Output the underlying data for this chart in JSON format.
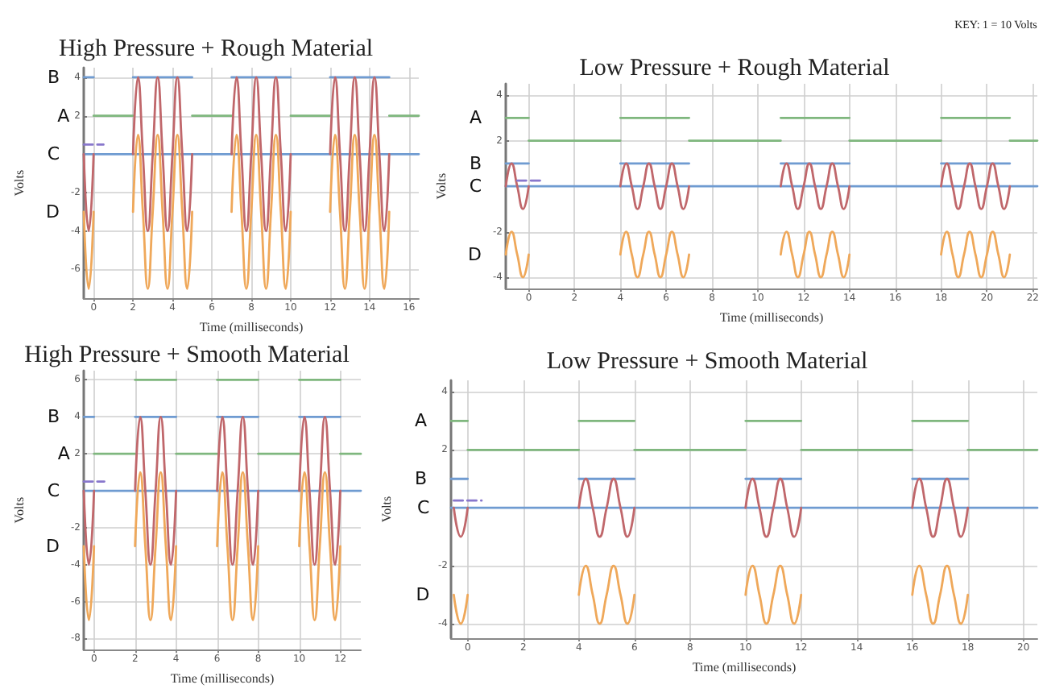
{
  "chart_data": [
    {
      "type": "line",
      "title": "High Pressure + Rough Material",
      "xlabel": "Time (milliseconds)",
      "ylabel": "Volts",
      "xlim": [
        -0.5,
        16.5
      ],
      "xticks": [
        0,
        2,
        4,
        6,
        8,
        10,
        12,
        14,
        16
      ],
      "ylim": [
        -7.5,
        4.5
      ],
      "yticks": [
        -6,
        -4,
        -2,
        2,
        4
      ],
      "grid": true,
      "marker": "none",
      "series": [
        {
          "name": "A",
          "color": "#7fb77e",
          "x": [
            0,
            2,
            null,
            5,
            7,
            null,
            10,
            12,
            null,
            15,
            16.5
          ],
          "values": [
            2,
            2,
            null,
            2,
            2,
            null,
            2,
            2,
            null,
            2,
            2
          ]
        },
        {
          "name": "B",
          "color": "#6f9bd1",
          "x": [
            -0.5,
            0,
            null,
            2,
            5,
            null,
            7,
            10,
            null,
            12,
            15,
            null,
            -0.5,
            16.5
          ],
          "values": [
            4,
            4,
            null,
            4,
            4,
            null,
            4,
            4,
            null,
            4,
            4,
            null,
            0,
            0
          ]
        },
        {
          "name": "C",
          "color": "#c0676b",
          "x": [
            -0.5,
            -0.25,
            0,
            null,
            2,
            2.25,
            2.5,
            2.75,
            3,
            3.25,
            3.5,
            3.75,
            4,
            4.25,
            4.5,
            4.75,
            5,
            null,
            7,
            7.25,
            7.5,
            7.75,
            8,
            8.25,
            8.5,
            8.75,
            9,
            9.25,
            9.5,
            9.75,
            10,
            null,
            12,
            12.25,
            12.5,
            12.75,
            13,
            13.25,
            13.5,
            13.75,
            14,
            14.25,
            14.5,
            14.75,
            15
          ],
          "values": [
            0,
            -4,
            0,
            null,
            0,
            4,
            0,
            -4,
            0,
            4,
            0,
            -4,
            0,
            4,
            0,
            -4,
            0,
            null,
            0,
            4,
            0,
            -4,
            0,
            4,
            0,
            -4,
            0,
            4,
            0,
            -4,
            0,
            null,
            0,
            4,
            0,
            -4,
            0,
            4,
            0,
            -4,
            0,
            4,
            0,
            -4,
            0
          ]
        },
        {
          "name": "D",
          "color": "#efa85a",
          "x": [
            -0.5,
            -0.25,
            0,
            null,
            2,
            2.25,
            2.5,
            2.75,
            3,
            3.25,
            3.5,
            3.75,
            4,
            4.25,
            4.5,
            4.75,
            5,
            null,
            7,
            7.25,
            7.5,
            7.75,
            8,
            8.25,
            8.5,
            8.75,
            9,
            9.25,
            9.5,
            9.75,
            10,
            null,
            12,
            12.25,
            12.5,
            12.75,
            13,
            13.25,
            13.5,
            13.75,
            14,
            14.25,
            14.5,
            14.75,
            15
          ],
          "values": [
            -3,
            -7,
            -3,
            null,
            -3,
            1,
            -3,
            -7,
            -3,
            1,
            -3,
            -7,
            -3,
            1,
            -3,
            -7,
            -3,
            null,
            -3,
            1,
            -3,
            -7,
            -3,
            1,
            -3,
            -7,
            -3,
            1,
            -3,
            -7,
            -3,
            null,
            -3,
            1,
            -3,
            -7,
            -3,
            1,
            -3,
            -7,
            -3,
            1,
            -3,
            -7,
            -3
          ]
        },
        {
          "color": "#8877cc",
          "line_style": "dashed",
          "x": [
            -0.5,
            0.5
          ],
          "values": [
            0.5,
            0.5
          ]
        }
      ]
    },
    {
      "type": "line",
      "title": "Low Pressure + Rough Material",
      "xlabel": "Time (milliseconds)",
      "ylabel": "Volts",
      "annotations": [
        "KEY: 1 = 10 Volts"
      ],
      "xlim": [
        -1,
        22.2
      ],
      "xticks": [
        0,
        2,
        4,
        6,
        8,
        10,
        12,
        14,
        16,
        18,
        20,
        22
      ],
      "ylim": [
        -4.5,
        4.5
      ],
      "yticks": [
        -4,
        -2,
        2,
        4
      ],
      "grid": true,
      "marker": "none",
      "series": [
        {
          "name": "A",
          "color": "#7fb77e",
          "x": [
            -1,
            0,
            null,
            0,
            4,
            null,
            4,
            7,
            null,
            7,
            11,
            null,
            11,
            14,
            null,
            14,
            18,
            null,
            18,
            21,
            null,
            21,
            22.2
          ],
          "values": [
            3,
            3,
            null,
            2,
            2,
            null,
            3,
            3,
            null,
            2,
            2,
            null,
            3,
            3,
            null,
            2,
            2,
            null,
            3,
            3,
            null,
            2,
            2
          ]
        },
        {
          "name": "B",
          "color": "#6f9bd1",
          "x": [
            -1,
            0,
            null,
            4,
            7,
            null,
            11,
            14,
            null,
            18,
            21,
            null,
            -1,
            22.2
          ],
          "values": [
            1,
            1,
            null,
            1,
            1,
            null,
            1,
            1,
            null,
            1,
            1,
            null,
            0,
            0
          ]
        },
        {
          "name": "C",
          "color": "#c0676b",
          "x": [
            -1,
            -0.75,
            -0.5,
            -0.25,
            0,
            null,
            4,
            4.25,
            4.5,
            4.75,
            5,
            5.25,
            5.5,
            5.75,
            6,
            6.25,
            6.5,
            6.75,
            7,
            null,
            11,
            11.25,
            11.5,
            11.75,
            12,
            12.25,
            12.5,
            12.75,
            13,
            13.25,
            13.5,
            13.75,
            14,
            null,
            18,
            18.25,
            18.5,
            18.75,
            19,
            19.25,
            19.5,
            19.75,
            20,
            20.25,
            20.5,
            20.75,
            21
          ],
          "values": [
            0,
            1,
            0,
            -1,
            0,
            null,
            0,
            1,
            0,
            -1,
            0,
            1,
            0,
            -1,
            0,
            1,
            0,
            -1,
            0,
            null,
            0,
            1,
            0,
            -1,
            0,
            1,
            0,
            -1,
            0,
            1,
            0,
            -1,
            0,
            null,
            0,
            1,
            0,
            -1,
            0,
            1,
            0,
            -1,
            0,
            1,
            0,
            -1,
            0
          ]
        },
        {
          "name": "D",
          "color": "#efa85a",
          "x": [
            -1,
            -0.75,
            -0.5,
            -0.25,
            0,
            null,
            4,
            4.25,
            4.5,
            4.75,
            5,
            5.25,
            5.5,
            5.75,
            6,
            6.25,
            6.5,
            6.75,
            7,
            null,
            11,
            11.25,
            11.5,
            11.75,
            12,
            12.25,
            12.5,
            12.75,
            13,
            13.25,
            13.5,
            13.75,
            14,
            null,
            18,
            18.25,
            18.5,
            18.75,
            19,
            19.25,
            19.5,
            19.75,
            20,
            20.25,
            20.5,
            20.75,
            21
          ],
          "values": [
            -3,
            -2,
            -3,
            -4,
            -3,
            null,
            -3,
            -2,
            -3,
            -4,
            -3,
            -2,
            -3,
            -4,
            -3,
            -2,
            -3,
            -4,
            -3,
            null,
            -3,
            -2,
            -3,
            -4,
            -3,
            -2,
            -3,
            -4,
            -3,
            -2,
            -3,
            -4,
            -3,
            null,
            -3,
            -2,
            -3,
            -4,
            -3,
            -2,
            -3,
            -4,
            -3,
            -2,
            -3,
            -4,
            -3
          ]
        },
        {
          "color": "#8877cc",
          "line_style": "dashed",
          "x": [
            -0.5,
            0.5
          ],
          "values": [
            0.25,
            0.25
          ]
        }
      ]
    },
    {
      "type": "line",
      "title": "High Pressure + Smooth Material",
      "xlabel": "Time (milliseconds)",
      "ylabel": "Volts",
      "xlim": [
        -0.5,
        13
      ],
      "xticks": [
        0,
        2,
        4,
        6,
        8,
        10,
        12
      ],
      "ylim": [
        -8.6,
        6.5
      ],
      "yticks": [
        -8,
        -6,
        -4,
        -2,
        2,
        4,
        6
      ],
      "grid": true,
      "marker": "none",
      "series": [
        {
          "name": "A",
          "color": "#7fb77e",
          "x": [
            0,
            2,
            null,
            2,
            4,
            null,
            4,
            6,
            null,
            6,
            8,
            null,
            8,
            10,
            null,
            10,
            12,
            null,
            12,
            13
          ],
          "values": [
            2,
            2,
            null,
            6,
            6,
            null,
            2,
            2,
            null,
            6,
            6,
            null,
            2,
            2,
            null,
            6,
            6,
            null,
            2,
            2
          ]
        },
        {
          "name": "B",
          "color": "#6f9bd1",
          "x": [
            -0.5,
            0,
            null,
            2,
            4,
            null,
            6,
            8,
            null,
            10,
            12,
            null,
            -0.5,
            13
          ],
          "values": [
            4,
            4,
            null,
            4,
            4,
            null,
            4,
            4,
            null,
            4,
            4,
            null,
            0,
            0
          ]
        },
        {
          "name": "C",
          "color": "#c0676b",
          "x": [
            -0.5,
            -0.25,
            0,
            null,
            2,
            2.25,
            2.5,
            2.75,
            3,
            3.25,
            3.5,
            3.75,
            4,
            null,
            6,
            6.25,
            6.5,
            6.75,
            7,
            7.25,
            7.5,
            7.75,
            8,
            null,
            10,
            10.25,
            10.5,
            10.75,
            11,
            11.25,
            11.5,
            11.75,
            12
          ],
          "values": [
            0,
            -4,
            0,
            null,
            0,
            4,
            0,
            -4,
            0,
            4,
            0,
            -4,
            0,
            null,
            0,
            4,
            0,
            -4,
            0,
            4,
            0,
            -4,
            0,
            null,
            0,
            4,
            0,
            -4,
            0,
            4,
            0,
            -4,
            0
          ]
        },
        {
          "name": "D",
          "color": "#efa85a",
          "x": [
            -0.5,
            -0.25,
            0,
            null,
            2,
            2.25,
            2.5,
            2.75,
            3,
            3.25,
            3.5,
            3.75,
            4,
            null,
            6,
            6.25,
            6.5,
            6.75,
            7,
            7.25,
            7.5,
            7.75,
            8,
            null,
            10,
            10.25,
            10.5,
            10.75,
            11,
            11.25,
            11.5,
            11.75,
            12
          ],
          "values": [
            -3,
            -7,
            -3,
            null,
            -3,
            1,
            -3,
            -7,
            -3,
            1,
            -3,
            -7,
            -3,
            null,
            -3,
            1,
            -3,
            -7,
            -3,
            1,
            -3,
            -7,
            -3,
            null,
            -3,
            1,
            -3,
            -7,
            -3,
            1,
            -3,
            -7,
            -3
          ]
        },
        {
          "color": "#8877cc",
          "line_style": "dashed",
          "x": [
            -0.5,
            0.5
          ],
          "values": [
            0.5,
            0.5
          ]
        }
      ]
    },
    {
      "type": "line",
      "title": "Low Pressure + Smooth Material",
      "xlabel": "Time (milliseconds)",
      "ylabel": "Volts",
      "xlim": [
        -0.6,
        20.5
      ],
      "xticks": [
        0,
        2,
        4,
        6,
        8,
        10,
        12,
        14,
        16,
        18,
        20
      ],
      "ylim": [
        -4.5,
        4.4
      ],
      "yticks": [
        -4,
        -2,
        2,
        4
      ],
      "grid": true,
      "marker": "none",
      "series": [
        {
          "name": "A",
          "color": "#7fb77e",
          "x": [
            -0.6,
            0,
            null,
            0,
            4,
            null,
            4,
            6,
            null,
            6,
            10,
            null,
            10,
            12,
            null,
            12,
            16,
            null,
            16,
            18,
            null,
            18,
            20.5
          ],
          "values": [
            3,
            3,
            null,
            2,
            2,
            null,
            3,
            3,
            null,
            2,
            2,
            null,
            3,
            3,
            null,
            2,
            2,
            null,
            3,
            3,
            null,
            2,
            2
          ]
        },
        {
          "name": "B",
          "color": "#6f9bd1",
          "x": [
            -0.6,
            0,
            null,
            4,
            6,
            null,
            10,
            12,
            null,
            16,
            18,
            null,
            -0.6,
            20.5
          ],
          "values": [
            1,
            1,
            null,
            1,
            1,
            null,
            1,
            1,
            null,
            1,
            1,
            null,
            0,
            0
          ]
        },
        {
          "name": "C",
          "color": "#c0676b",
          "x": [
            -0.5,
            -0.25,
            0,
            null,
            4,
            4.25,
            4.5,
            4.75,
            5,
            5.25,
            5.5,
            5.75,
            6,
            null,
            10,
            10.25,
            10.5,
            10.75,
            11,
            11.25,
            11.5,
            11.75,
            12,
            null,
            16,
            16.25,
            16.5,
            16.75,
            17,
            17.25,
            17.5,
            17.75,
            18
          ],
          "values": [
            0,
            -1,
            0,
            null,
            0,
            1,
            0,
            -1,
            0,
            1,
            0,
            -1,
            0,
            null,
            0,
            1,
            0,
            -1,
            0,
            1,
            0,
            -1,
            0,
            null,
            0,
            1,
            0,
            -1,
            0,
            1,
            0,
            -1,
            0
          ]
        },
        {
          "name": "D",
          "color": "#efa85a",
          "x": [
            -0.5,
            -0.25,
            0,
            null,
            4,
            4.25,
            4.5,
            4.75,
            5,
            5.25,
            5.5,
            5.75,
            6,
            null,
            10,
            10.25,
            10.5,
            10.75,
            11,
            11.25,
            11.5,
            11.75,
            12,
            null,
            16,
            16.25,
            16.5,
            16.75,
            17,
            17.25,
            17.5,
            17.75,
            18
          ],
          "values": [
            -3,
            -4,
            -3,
            null,
            -3,
            -2,
            -3,
            -4,
            -3,
            -2,
            -3,
            -4,
            -3,
            null,
            -3,
            -2,
            -3,
            -4,
            -3,
            -2,
            -3,
            -4,
            -3,
            null,
            -3,
            -2,
            -3,
            -4,
            -3,
            -2,
            -3,
            -4,
            -3
          ]
        },
        {
          "color": "#8877cc",
          "line_style": "dashed",
          "x": [
            -0.5,
            0.5
          ],
          "values": [
            0.25,
            0.25
          ]
        }
      ]
    }
  ]
}
